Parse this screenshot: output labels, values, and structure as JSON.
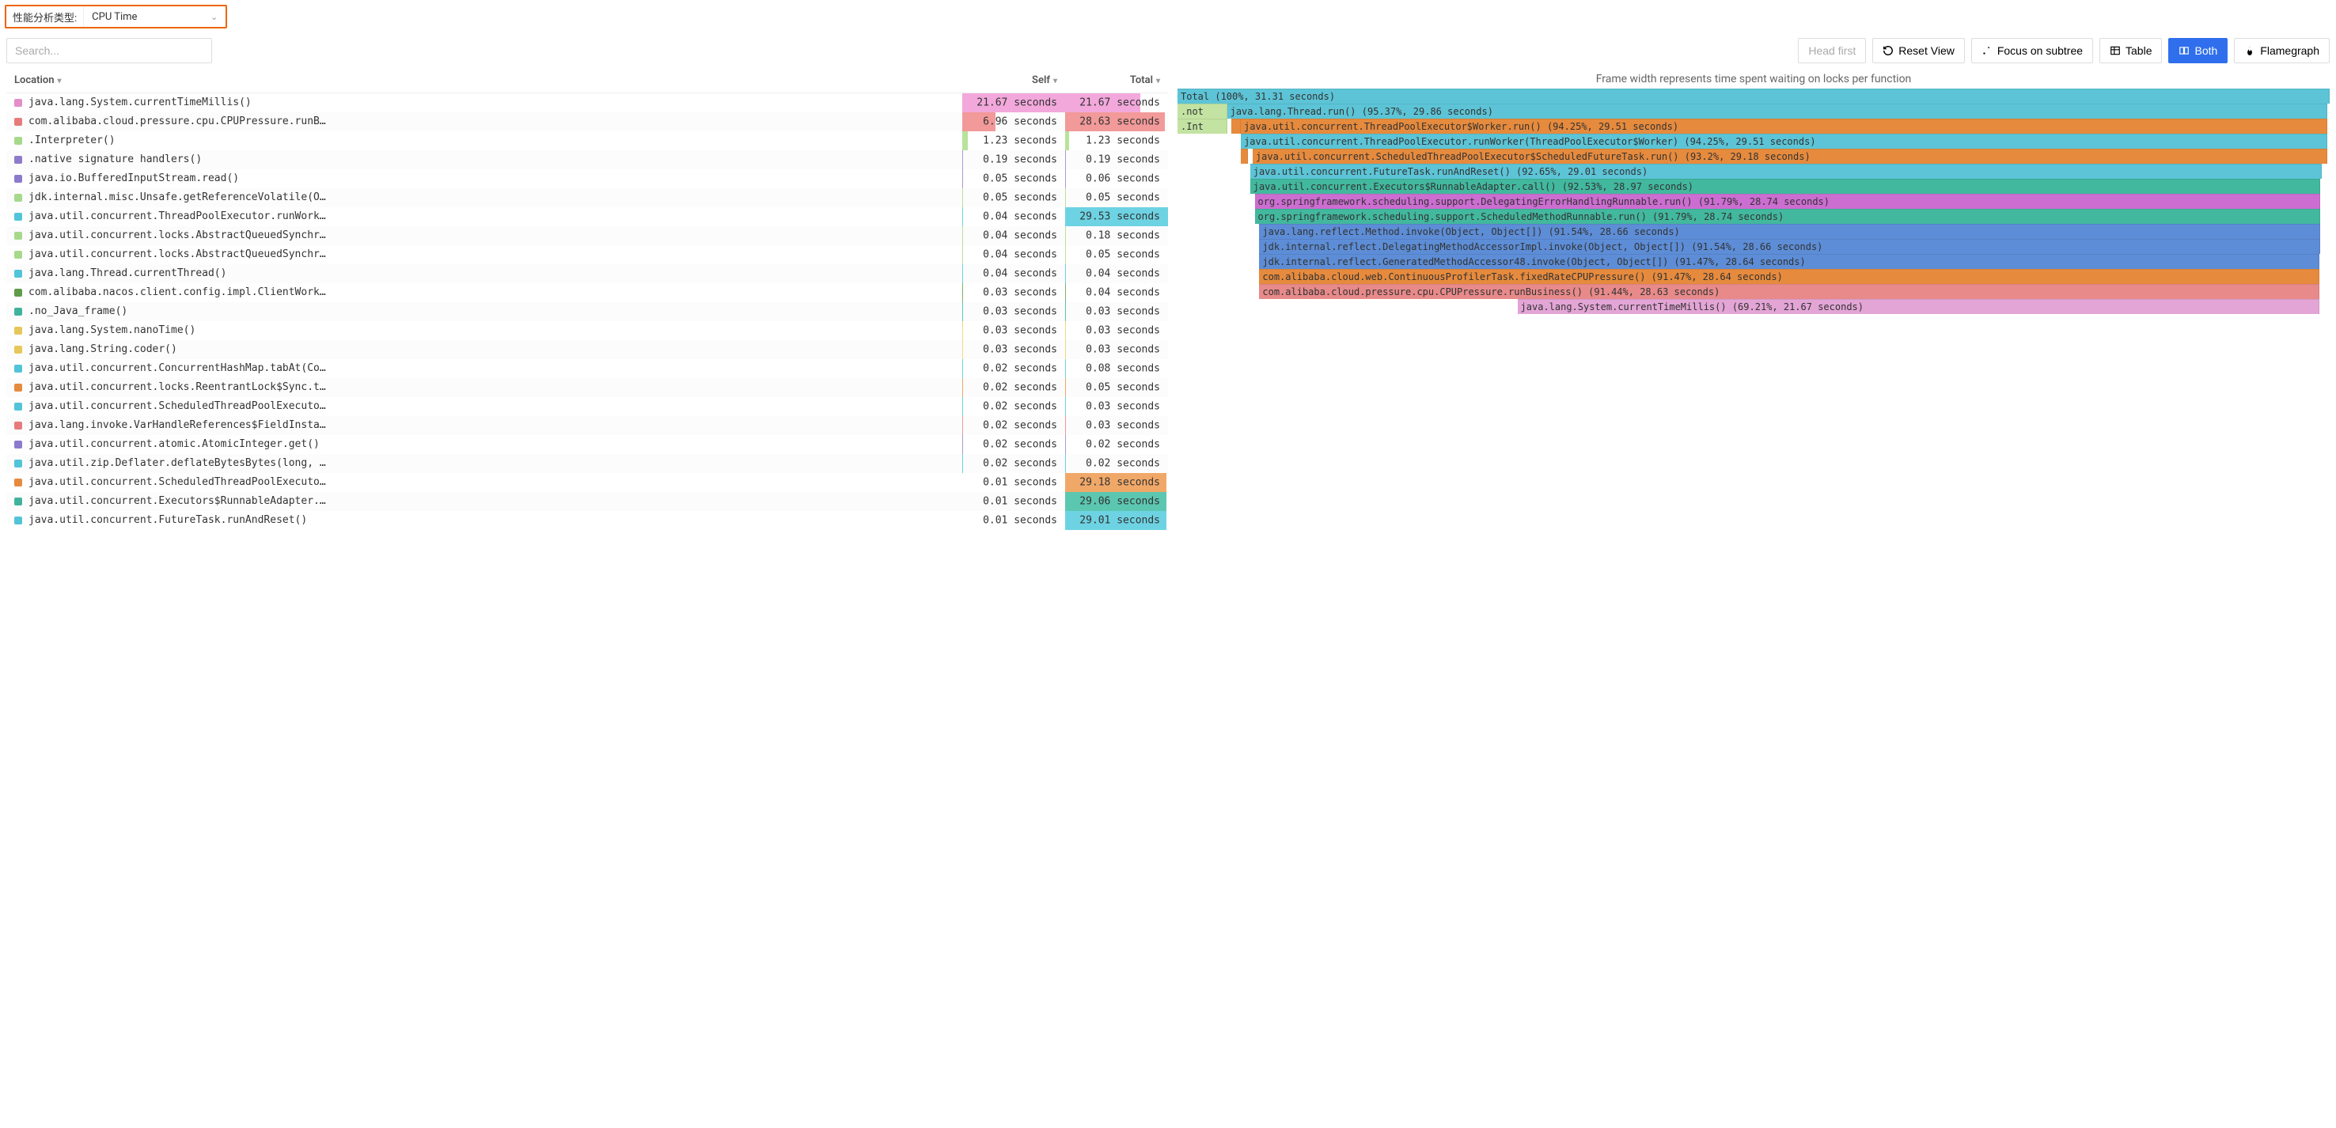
{
  "typeSelector": {
    "label": "性能分析类型:",
    "value": "CPU Time"
  },
  "search": {
    "placeholder": "Search..."
  },
  "buttons": {
    "headFirst": "Head first",
    "resetView": "Reset View",
    "focusSubtree": "Focus on subtree",
    "table": "Table",
    "both": "Both",
    "flamegraph": "Flamegraph"
  },
  "table": {
    "headers": {
      "location": "Location",
      "self": "Self",
      "total": "Total"
    },
    "maxSelf": 21.67,
    "maxTotal": 29.53,
    "rows": [
      {
        "color": "#e38ec8",
        "loc": "java.lang.System.currentTimeMillis()",
        "self": "21.67 seconds",
        "selfV": 21.67,
        "selfBar": "#f2a8db",
        "total": "21.67 seconds",
        "totalV": 21.67,
        "totalBar": "#f2a8db"
      },
      {
        "color": "#e77b7b",
        "loc": "com.alibaba.cloud.pressure.cpu.CPUPressure.runBusine…",
        "self": "6.96 seconds",
        "selfV": 6.96,
        "selfBar": "#f29999",
        "total": "28.63 seconds",
        "totalV": 28.63,
        "totalBar": "#f29999"
      },
      {
        "color": "#a6d98c",
        "loc": ".Interpreter()",
        "self": "1.23 seconds",
        "selfV": 1.23,
        "selfBar": "#b8e39b",
        "total": "1.23 seconds",
        "totalV": 1.23,
        "totalBar": "#b8e39b"
      },
      {
        "color": "#8c7bcc",
        "loc": ".native signature handlers()",
        "self": "0.19 seconds",
        "selfV": 0.19,
        "selfBar": "#a99ad9",
        "total": "0.19 seconds",
        "totalV": 0.19,
        "totalBar": "#a99ad9"
      },
      {
        "color": "#8c7bcc",
        "loc": "java.io.BufferedInputStream.read()",
        "self": "0.05 seconds",
        "selfV": 0.05,
        "selfBar": "#a99ad9",
        "total": "0.06 seconds",
        "totalV": 0.06,
        "totalBar": "#a99ad9"
      },
      {
        "color": "#a6d98c",
        "loc": "jdk.internal.misc.Unsafe.getReferenceVolatile(Object…",
        "self": "0.05 seconds",
        "selfV": 0.05,
        "selfBar": "#b8e39b",
        "total": "0.05 seconds",
        "totalV": 0.05,
        "totalBar": "#b8e39b"
      },
      {
        "color": "#52c4d9",
        "loc": "java.util.concurrent.ThreadPoolExecutor.runWorker(Th…",
        "self": "0.04 seconds",
        "selfV": 0.04,
        "selfBar": "#6dd3e3",
        "total": "29.53 seconds",
        "totalV": 29.53,
        "totalBar": "#6dd3e3"
      },
      {
        "color": "#a6d98c",
        "loc": "java.util.concurrent.locks.AbstractQueuedSynchronize…",
        "self": "0.04 seconds",
        "selfV": 0.04,
        "selfBar": "#b8e39b",
        "total": "0.18 seconds",
        "totalV": 0.18,
        "totalBar": "#b8e39b"
      },
      {
        "color": "#a6d98c",
        "loc": "java.util.concurrent.locks.AbstractQueuedSynchronize…",
        "self": "0.04 seconds",
        "selfV": 0.04,
        "selfBar": "#b8e39b",
        "total": "0.05 seconds",
        "totalV": 0.05,
        "totalBar": "#b8e39b"
      },
      {
        "color": "#52c4d9",
        "loc": "java.lang.Thread.currentThread()",
        "self": "0.04 seconds",
        "selfV": 0.04,
        "selfBar": "#6dd3e3",
        "total": "0.04 seconds",
        "totalV": 0.04,
        "totalBar": "#6dd3e3"
      },
      {
        "color": "#5f9c4a",
        "loc": "com.alibaba.nacos.client.config.impl.ClientWorker.ch…",
        "self": "0.03 seconds",
        "selfV": 0.03,
        "selfBar": "#7bb368",
        "total": "0.04 seconds",
        "totalV": 0.04,
        "totalBar": "#7bb368"
      },
      {
        "color": "#40b39c",
        "loc": ".no_Java_frame()",
        "self": "0.03 seconds",
        "selfV": 0.03,
        "selfBar": "#5cc7b0",
        "total": "0.03 seconds",
        "totalV": 0.03,
        "totalBar": "#5cc7b0"
      },
      {
        "color": "#e6c85a",
        "loc": "java.lang.System.nanoTime()",
        "self": "0.03 seconds",
        "selfV": 0.03,
        "selfBar": "#f0d980",
        "total": "0.03 seconds",
        "totalV": 0.03,
        "totalBar": "#f0d980"
      },
      {
        "color": "#e6c85a",
        "loc": "java.lang.String.coder()",
        "self": "0.03 seconds",
        "selfV": 0.03,
        "selfBar": "#f0d980",
        "total": "0.03 seconds",
        "totalV": 0.03,
        "totalBar": "#f0d980"
      },
      {
        "color": "#52c4d9",
        "loc": "java.util.concurrent.ConcurrentHashMap.tabAt(Concurr…",
        "self": "0.02 seconds",
        "selfV": 0.02,
        "selfBar": "#6dd3e3",
        "total": "0.08 seconds",
        "totalV": 0.08,
        "totalBar": "#6dd3e3"
      },
      {
        "color": "#e68a3d",
        "loc": "java.util.concurrent.locks.ReentrantLock$Sync.tryRel…",
        "self": "0.02 seconds",
        "selfV": 0.02,
        "selfBar": "#f0a868",
        "total": "0.05 seconds",
        "totalV": 0.05,
        "totalBar": "#f0a868"
      },
      {
        "color": "#52c4d9",
        "loc": "java.util.concurrent.ScheduledThreadPoolExecutor$Sch…",
        "self": "0.02 seconds",
        "selfV": 0.02,
        "selfBar": "#6dd3e3",
        "total": "0.03 seconds",
        "totalV": 0.03,
        "totalBar": "#6dd3e3"
      },
      {
        "color": "#e77b7b",
        "loc": "java.lang.invoke.VarHandleReferences$FieldInstanceRe…",
        "self": "0.02 seconds",
        "selfV": 0.02,
        "selfBar": "#f29999",
        "total": "0.03 seconds",
        "totalV": 0.03,
        "totalBar": "#f29999"
      },
      {
        "color": "#8c7bcc",
        "loc": "java.util.concurrent.atomic.AtomicInteger.get()",
        "self": "0.02 seconds",
        "selfV": 0.02,
        "selfBar": "#a99ad9",
        "total": "0.02 seconds",
        "totalV": 0.02,
        "totalBar": "#a99ad9"
      },
      {
        "color": "#52c4d9",
        "loc": "java.util.zip.Deflater.deflateBytesBytes(long, byte[…",
        "self": "0.02 seconds",
        "selfV": 0.02,
        "selfBar": "#6dd3e3",
        "total": "0.02 seconds",
        "totalV": 0.02,
        "totalBar": "#6dd3e3"
      },
      {
        "color": "#e68a3d",
        "loc": "java.util.concurrent.ScheduledThreadPoolExecutor$Sch…",
        "self": "0.01 seconds",
        "selfV": 0.01,
        "selfBar": "#f0a868",
        "total": "29.18 seconds",
        "totalV": 29.18,
        "totalBar": "#f0a868"
      },
      {
        "color": "#40b39c",
        "loc": "java.util.concurrent.Executors$RunnableAdapter.call()",
        "self": "0.01 seconds",
        "selfV": 0.01,
        "selfBar": "#5cc7b0",
        "total": "29.06 seconds",
        "totalV": 29.06,
        "totalBar": "#5cc7b0"
      },
      {
        "color": "#52c4d9",
        "loc": "java.util.concurrent.FutureTask.runAndReset()",
        "self": "0.01 seconds",
        "selfV": 0.01,
        "selfBar": "#6dd3e3",
        "total": "29.01 seconds",
        "totalV": 29.01,
        "totalBar": "#6dd3e3"
      }
    ]
  },
  "flame": {
    "caption": "Frame width represents time spent waiting on locks per function",
    "totalWidth": 760,
    "rows": [
      [
        {
          "indent": 0,
          "width": 100,
          "color": "#5cc4d6",
          "text": "Total (100%, 31.31 seconds)"
        }
      ],
      [
        {
          "indent": 0,
          "width": 4.3,
          "color": "#c2e3a1",
          "text": ".not"
        },
        {
          "indent": 0,
          "width": 95.5,
          "color": "#5cc4d6",
          "text": "java.lang.Thread.run() (95.37%, 29.86 seconds)"
        }
      ],
      [
        {
          "indent": 0,
          "width": 4.3,
          "color": "#c2e3a1",
          "text": ".Int"
        },
        {
          "indent": 0.4,
          "width": 0.8,
          "color": "#e68a3d",
          "text": ""
        },
        {
          "indent": 0,
          "width": 94.3,
          "color": "#e68a3d",
          "text": "java.util.concurrent.ThreadPoolExecutor$Worker.run() (94.25%, 29.51 seconds)"
        }
      ],
      [
        {
          "indent": 5.5,
          "width": 94.3,
          "color": "#5cc4d6",
          "text": "java.util.concurrent.ThreadPoolExecutor.runWorker(ThreadPoolExecutor$Worker) (94.25%, 29.51 seconds)"
        }
      ],
      [
        {
          "indent": 5.5,
          "width": 0.4,
          "color": "#e68a3d",
          "text": ""
        },
        {
          "indent": 0.4,
          "width": 93.3,
          "color": "#e68a3d",
          "text": "java.util.concurrent.ScheduledThreadPoolExecutor$ScheduledFutureTask.run() (93.2%, 29.18 seconds)"
        }
      ],
      [
        {
          "indent": 6.3,
          "width": 93.0,
          "color": "#5cc4d6",
          "text": "java.util.concurrent.FutureTask.runAndReset() (92.65%, 29.01 seconds)"
        }
      ],
      [
        {
          "indent": 6.3,
          "width": 92.9,
          "color": "#42b89e",
          "text": "java.util.concurrent.Executors$RunnableAdapter.call() (92.53%, 28.97 seconds)"
        }
      ],
      [
        {
          "indent": 6.7,
          "width": 92.5,
          "color": "#cc6dd1",
          "text": "org.springframework.scheduling.support.DelegatingErrorHandlingRunnable.run() (91.79%, 28.74 seconds)"
        }
      ],
      [
        {
          "indent": 6.7,
          "width": 92.5,
          "color": "#42b89e",
          "text": "org.springframework.scheduling.support.ScheduledMethodRunnable.run() (91.79%, 28.74 seconds)"
        }
      ],
      [
        {
          "indent": 7.1,
          "width": 92.1,
          "color": "#5d8dd6",
          "text": "java.lang.reflect.Method.invoke(Object, Object[]) (91.54%, 28.66 seconds)"
        }
      ],
      [
        {
          "indent": 7.1,
          "width": 92.1,
          "color": "#5d8dd6",
          "text": "jdk.internal.reflect.DelegatingMethodAccessorImpl.invoke(Object, Object[]) (91.54%, 28.66 seconds)"
        }
      ],
      [
        {
          "indent": 7.1,
          "width": 92.0,
          "color": "#5d8dd6",
          "text": "jdk.internal.reflect.GeneratedMethodAccessor48.invoke(Object, Object[]) (91.47%, 28.64 seconds)"
        }
      ],
      [
        {
          "indent": 7.1,
          "width": 92.0,
          "color": "#e68a3d",
          "text": "com.alibaba.cloud.web.ContinuousProfilerTask.fixedRateCPUPressure() (91.47%, 28.64 seconds)"
        }
      ],
      [
        {
          "indent": 7.1,
          "width": 92.0,
          "color": "#e88a8a",
          "text": "com.alibaba.cloud.pressure.cpu.CPUPressure.runBusiness() (91.44%, 28.63 seconds)"
        }
      ],
      [
        {
          "indent": 29.5,
          "width": 69.6,
          "color": "#e3a5d6",
          "text": "java.lang.System.currentTimeMillis() (69.21%, 21.67 seconds)"
        }
      ]
    ]
  }
}
